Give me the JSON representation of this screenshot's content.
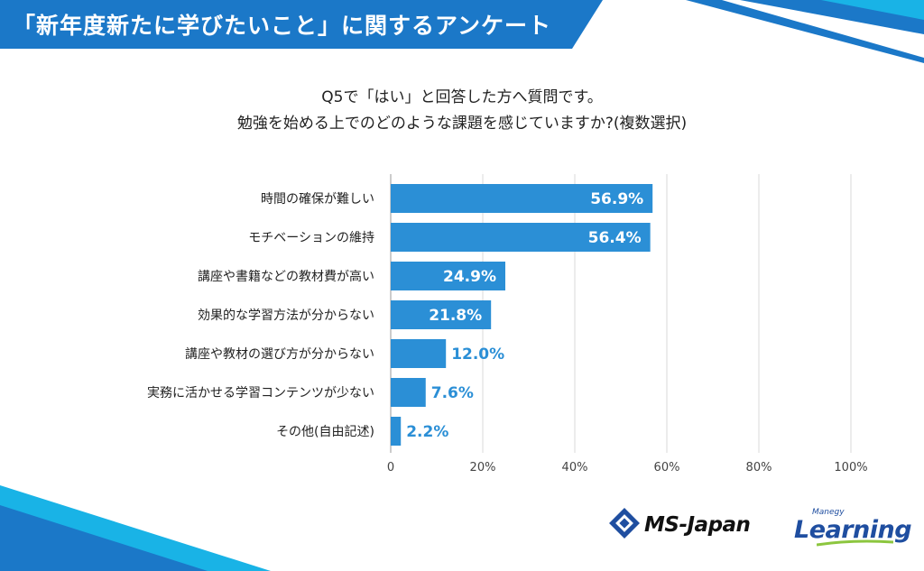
{
  "header": {
    "title": "「新年度新たに学びたいこと」に関するアンケート"
  },
  "question": {
    "line1": "Q5で「はい」と回答した方へ質問です。",
    "line2": "勉強を始める上でのどのような課題を感じていますか?(複数選択)"
  },
  "chart_data": {
    "type": "bar",
    "orientation": "horizontal",
    "categories": [
      "時間の確保が難しい",
      "モチベーションの維持",
      "講座や書籍などの教材費が高い",
      "効果的な学習方法が分からない",
      "講座や教材の選び方が分からない",
      "実務に活かせる学習コンテンツが少ない",
      "その他(自由記述)"
    ],
    "values": [
      56.9,
      56.4,
      24.9,
      21.8,
      12.0,
      7.6,
      2.2
    ],
    "value_labels": [
      "56.9%",
      "56.4%",
      "24.9%",
      "21.8%",
      "12.0%",
      "7.6%",
      "2.2%"
    ],
    "xlim": [
      0,
      100
    ],
    "ticks": [
      0,
      20,
      40,
      60,
      80,
      100
    ],
    "tick_labels": [
      "0",
      "20%",
      "40%",
      "60%",
      "80%",
      "100%"
    ],
    "grid": true,
    "bar_color": "#2b8fd6"
  },
  "logos": {
    "ms_japan": "MS-Japan",
    "manegy_small": "Manegy",
    "manegy_big": "Learning"
  },
  "colors": {
    "banner": "#1b78c8",
    "accent": "#2b8fd6",
    "accent_light": "#19b3e6"
  }
}
